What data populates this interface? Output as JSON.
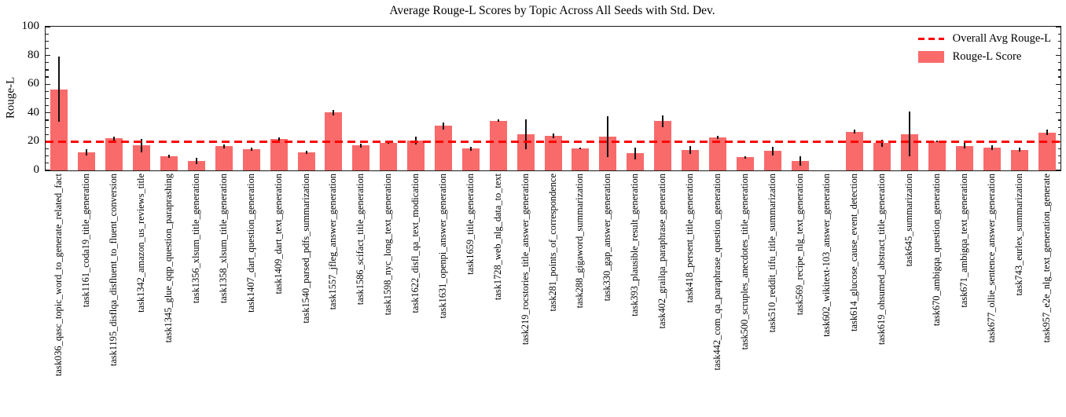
{
  "chart_data": {
    "type": "bar",
    "title": "Average Rouge-L Scores by Topic Across All Seeds with Std. Dev.",
    "xlabel": "",
    "ylabel": "Rouge-L",
    "ylim": [
      0,
      100
    ],
    "yticks": [
      0,
      20,
      40,
      60,
      80,
      100
    ],
    "minor_tick_step": 5,
    "grid": false,
    "bar_color": "#f96a6a",
    "error_color": "#111111",
    "avg_line_color": "#ff0000",
    "overall_avg": 20.0,
    "legend": {
      "position": "upper right",
      "items": [
        {
          "label": "Overall Avg Rouge-L",
          "type": "dashed-line",
          "color": "#ff0000"
        },
        {
          "label": "Rouge-L Score",
          "type": "patch",
          "color": "#f96a6a"
        }
      ]
    },
    "categories": [
      "task036_qasc_topic_word_to_generate_related_fact",
      "task1161_coda19_title_generation",
      "task1195_disflqa_disfluent_to_fluent_conversion",
      "task1342_amazon_us_reviews_title",
      "task1345_glue_qqp_question_paraprashing",
      "task1356_xlsum_title_generation",
      "task1358_xlsum_title_generation",
      "task1407_dart_question_generation",
      "task1409_dart_text_generation",
      "task1540_parsed_pdfs_summarization",
      "task1557_jfleg_answer_generation",
      "task1586_scifact_title_generation",
      "task1598_nyc_long_text_generation",
      "task1622_disfl_qa_text_modication",
      "task1631_openpi_answer_generation",
      "task1659_title_generation",
      "task1728_web_nlg_data_to_text",
      "task219_rocstories_title_answer_generation",
      "task281_points_of_correspondence",
      "task288_gigaword_summarization",
      "task330_gap_answer_generation",
      "task393_plausible_result_generation",
      "task402_grailqa_paraphrase_generation",
      "task418_persent_title_generation",
      "task442_com_qa_paraphrase_question_generation",
      "task500_scruples_anecdotes_title_generation",
      "task510_reddit_tifu_title_summarization",
      "task569_recipe_nlg_text_generation",
      "task602_wikitext-103_answer_generation",
      "task614_glucose_cause_event_detection",
      "task619_ohsumed_abstract_title_generation",
      "task645_summarization",
      "task670_ambigqa_question_generation",
      "task671_ambigqa_text_generation",
      "task677_ollie_sentence_answer_generation",
      "task743_eurlex_summarization",
      "task957_e2e_nlg_text_generation_generate"
    ],
    "values": [
      56.5,
      12.5,
      22.3,
      17.3,
      10.0,
      6.5,
      16.7,
      14.8,
      21.8,
      12.4,
      40.3,
      17.3,
      19.4,
      20.8,
      31.0,
      15.1,
      34.5,
      25.2,
      24.0,
      15.3,
      23.5,
      11.9,
      34.3,
      14.2,
      23.0,
      9.1,
      13.5,
      6.5,
      0.0,
      27.0,
      19.0,
      25.4,
      20.1,
      17.0,
      16.0,
      14.5,
      26.5
    ],
    "errors": [
      22.5,
      2.2,
      1.3,
      4.5,
      1.0,
      2.2,
      1.5,
      1.0,
      1.0,
      1.0,
      1.8,
      1.3,
      0.6,
      2.6,
      2.3,
      1.5,
      0.8,
      10.5,
      1.5,
      0.7,
      14.0,
      4.2,
      4.0,
      2.9,
      1.2,
      1.0,
      3.0,
      3.2,
      0.0,
      1.2,
      2.4,
      15.5,
      0.5,
      1.9,
      1.5,
      1.5,
      2.0
    ]
  }
}
